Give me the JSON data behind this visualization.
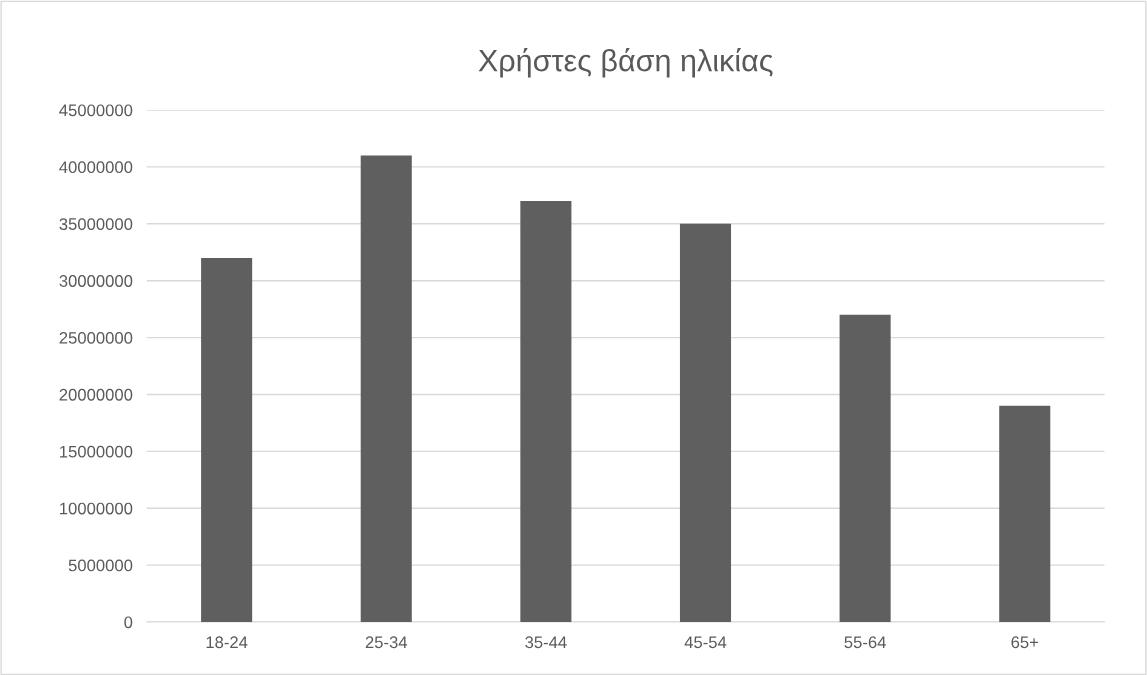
{
  "chart_data": {
    "type": "bar",
    "title": "Χρήστες βάση ηλικίας",
    "categories": [
      "18-24",
      "25-34",
      "35-44",
      "45-54",
      "55-64",
      "65+"
    ],
    "values": [
      32000000,
      41000000,
      37000000,
      35000000,
      27000000,
      19000000
    ],
    "color": "#5f5f5f",
    "ylim": [
      0,
      45000000
    ],
    "yticks": [
      0,
      5000000,
      10000000,
      15000000,
      20000000,
      25000000,
      30000000,
      35000000,
      40000000,
      45000000
    ],
    "grid": "y",
    "legend": false
  }
}
